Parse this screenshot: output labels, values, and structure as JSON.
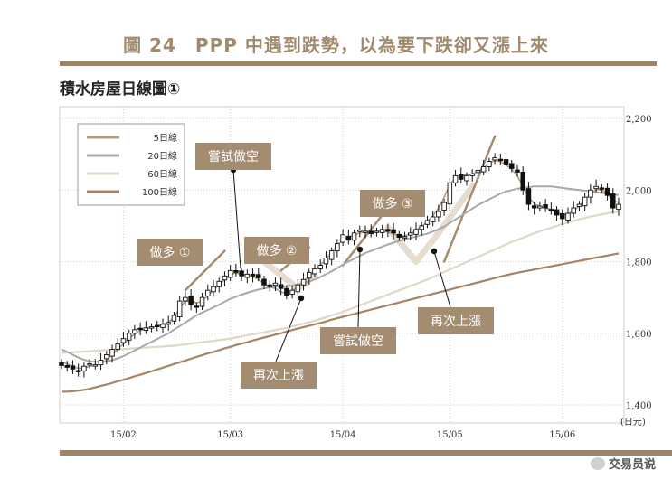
{
  "figure": {
    "title": "圖 24　PPP 中遇到跌勢，以為要下跌卻又漲上來",
    "chart_name": "積水房屋日線圖①"
  },
  "watermark": {
    "text": "交易员说",
    "icon": "wechat-icon"
  },
  "colors": {
    "title": "#a08a6e",
    "rule": "#9c8466",
    "label_box": "#a38c70",
    "ma5": "#b39c7e",
    "ma20": "#a9a9a9",
    "ma60": "#e1d7c8",
    "ma100": "#a88464",
    "candle": "#111111",
    "arrow_light": "#e6ddd0",
    "arrow_dark": "#a38c70"
  },
  "chart_data": {
    "type": "candlestick",
    "y_unit": "(日元)",
    "ylim": [
      1400,
      2200
    ],
    "y_ticks": [
      {
        "value": 1400,
        "label": "1,400"
      },
      {
        "value": 1600,
        "label": "1,600"
      },
      {
        "value": 1800,
        "label": "1,800"
      },
      {
        "value": 2000,
        "label": "2,000"
      },
      {
        "value": 2200,
        "label": "2,200"
      }
    ],
    "x_ticks": [
      {
        "index": 11,
        "label": "15/02"
      },
      {
        "index": 30,
        "label": "15/03"
      },
      {
        "index": 50,
        "label": "15/04"
      },
      {
        "index": 69,
        "label": "15/05"
      },
      {
        "index": 89,
        "label": "15/06"
      }
    ],
    "grid": "dotted vertical and horizontal",
    "legend": {
      "placement": "top-left",
      "items": [
        {
          "label": "5日線",
          "color_key": "ma5"
        },
        {
          "label": "20日線",
          "color_key": "ma20"
        },
        {
          "label": "60日線",
          "color_key": "ma60"
        },
        {
          "label": "100日線",
          "color_key": "ma100"
        }
      ]
    },
    "closes": [
      1510,
      1505,
      1500,
      1495,
      1508,
      1515,
      1512,
      1525,
      1540,
      1555,
      1570,
      1585,
      1600,
      1610,
      1612,
      1615,
      1618,
      1620,
      1625,
      1630,
      1650,
      1690,
      1700,
      1680,
      1675,
      1700,
      1720,
      1730,
      1745,
      1760,
      1775,
      1770,
      1760,
      1765,
      1760,
      1755,
      1735,
      1730,
      1740,
      1725,
      1705,
      1720,
      1735,
      1750,
      1770,
      1780,
      1790,
      1810,
      1830,
      1850,
      1875,
      1860,
      1880,
      1888,
      1885,
      1878,
      1885,
      1890,
      1885,
      1880,
      1868,
      1870,
      1880,
      1890,
      1900,
      1915,
      1925,
      1940,
      1965,
      2020,
      2040,
      2030,
      2040,
      2045,
      2055,
      2065,
      2080,
      2090,
      2085,
      2070,
      2060,
      2050,
      2000,
      1960,
      1950,
      1955,
      1950,
      1945,
      1930,
      1920,
      1935,
      1950,
      1960,
      1980,
      2000,
      2010,
      2005,
      1985,
      1950,
      1960
    ],
    "ma5": [
      1520,
      1515,
      1508,
      1502,
      1503,
      1508,
      1510,
      1515,
      1525,
      1540,
      1555,
      1570,
      1585,
      1598,
      1608,
      1613,
      1616,
      1620,
      1625,
      1630,
      1645,
      1670,
      1690,
      1690,
      1685,
      1690,
      1705,
      1720,
      1735,
      1750,
      1765,
      1768,
      1765,
      1762,
      1758,
      1750,
      1738,
      1730,
      1725,
      1715,
      1712,
      1718,
      1730,
      1745,
      1760,
      1775,
      1790,
      1808,
      1825,
      1845,
      1862,
      1868,
      1875,
      1880,
      1882,
      1882,
      1884,
      1885,
      1882,
      1878,
      1872,
      1872,
      1878,
      1888,
      1898,
      1912,
      1928,
      1950,
      1980,
      2015,
      2035,
      2040,
      2042,
      2045,
      2052,
      2062,
      2075,
      2082,
      2080,
      2070,
      2058,
      2040,
      2010,
      1980,
      1962,
      1955,
      1950,
      1945,
      1938,
      1930,
      1932,
      1942,
      1955,
      1972,
      1990,
      2002,
      2000,
      1990,
      1970,
      1965
    ],
    "ma20": [
      1555,
      1548,
      1540,
      1532,
      1526,
      1522,
      1520,
      1520,
      1522,
      1525,
      1530,
      1536,
      1544,
      1552,
      1560,
      1568,
      1576,
      1584,
      1592,
      1600,
      1610,
      1620,
      1630,
      1640,
      1650,
      1658,
      1665,
      1672,
      1680,
      1688,
      1696,
      1702,
      1708,
      1713,
      1718,
      1722,
      1725,
      1728,
      1730,
      1730,
      1731,
      1733,
      1736,
      1740,
      1745,
      1750,
      1757,
      1765,
      1773,
      1782,
      1792,
      1800,
      1808,
      1816,
      1824,
      1830,
      1836,
      1842,
      1848,
      1853,
      1858,
      1862,
      1866,
      1870,
      1874,
      1878,
      1884,
      1890,
      1898,
      1908,
      1918,
      1928,
      1938,
      1948,
      1958,
      1966,
      1974,
      1982,
      1990,
      1996,
      2000,
      2004,
      2006,
      2008,
      2010,
      2010,
      2010,
      2010,
      2008,
      2006,
      2004,
      2002,
      2000,
      1998,
      1996,
      1994,
      1992,
      1990,
      1988,
      1986
    ],
    "ma60": [
      1545,
      1546,
      1547,
      1548,
      1549,
      1550,
      1551,
      1552,
      1553,
      1554,
      1555,
      1556,
      1557,
      1558,
      1559,
      1560,
      1561,
      1562,
      1563,
      1564,
      1565,
      1567,
      1569,
      1571,
      1573,
      1575,
      1577,
      1579,
      1581,
      1583,
      1585,
      1588,
      1591,
      1594,
      1597,
      1600,
      1603,
      1606,
      1609,
      1612,
      1615,
      1619,
      1623,
      1627,
      1631,
      1635,
      1640,
      1645,
      1650,
      1655,
      1660,
      1666,
      1672,
      1678,
      1684,
      1690,
      1696,
      1702,
      1708,
      1714,
      1720,
      1726,
      1732,
      1738,
      1744,
      1750,
      1757,
      1764,
      1771,
      1778,
      1785,
      1792,
      1799,
      1806,
      1813,
      1820,
      1827,
      1834,
      1841,
      1848,
      1855,
      1861,
      1867,
      1873,
      1879,
      1885,
      1890,
      1895,
      1900,
      1905,
      1910,
      1914,
      1918,
      1922,
      1926,
      1929,
      1932,
      1935,
      1938,
      1940
    ],
    "ma100": [
      1437,
      1437,
      1438,
      1440,
      1442,
      1445,
      1449,
      1453,
      1457,
      1461,
      1466,
      1470,
      1475,
      1480,
      1484,
      1489,
      1494,
      1499,
      1504,
      1509,
      1514,
      1519,
      1524,
      1529,
      1534,
      1539,
      1544,
      1548,
      1553,
      1558,
      1562,
      1567,
      1571,
      1575,
      1580,
      1584,
      1588,
      1592,
      1596,
      1600,
      1605,
      1609,
      1613,
      1617,
      1621,
      1625,
      1629,
      1633,
      1638,
      1642,
      1646,
      1650,
      1654,
      1658,
      1662,
      1666,
      1670,
      1674,
      1678,
      1682,
      1686,
      1690,
      1694,
      1698,
      1702,
      1706,
      1710,
      1714,
      1718,
      1722,
      1726,
      1730,
      1734,
      1738,
      1742,
      1746,
      1750,
      1754,
      1758,
      1762,
      1766,
      1769,
      1772,
      1775,
      1778,
      1781,
      1784,
      1787,
      1790,
      1793,
      1796,
      1799,
      1802,
      1805,
      1808,
      1811,
      1814,
      1817,
      1820,
      1823
    ],
    "annotations": [
      {
        "text": "做多 ①",
        "kind": "label"
      },
      {
        "text": "嘗試做空",
        "kind": "label"
      },
      {
        "text": "做多 ②",
        "kind": "label"
      },
      {
        "text": "做多 ③",
        "kind": "label"
      },
      {
        "text": "再次上漲",
        "kind": "label"
      },
      {
        "text": "嘗試做空",
        "kind": "label"
      },
      {
        "text": "再次上漲",
        "kind": "label"
      }
    ]
  }
}
